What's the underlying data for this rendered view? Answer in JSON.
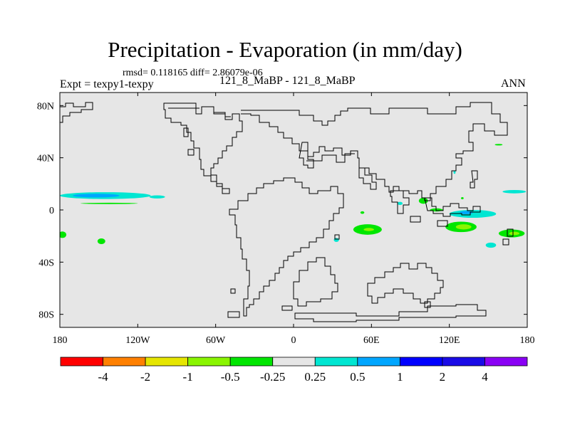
{
  "header": {
    "title": "Precipitation - Evaporation (in mm/day)",
    "stats": "rmsd= 0.118165 diff= 2.86079e-06",
    "case": "Expt = texpy1-texpy",
    "comparison": "121_8_MaBP - 121_8_MaBP",
    "season": "ANN"
  },
  "map": {
    "background_color": "#e6e6e6",
    "coastline_color": "#000000",
    "lon_ticks": [
      "180",
      "120W",
      "60W",
      "0",
      "60E",
      "120E",
      "180"
    ],
    "lat_ticks": [
      "80N",
      "40N",
      "0",
      "40S",
      "80S"
    ],
    "lat_tick_values": [
      80,
      40,
      0,
      -40,
      -80
    ],
    "lon_tick_values": [
      -180,
      -120,
      -60,
      0,
      60,
      120,
      180
    ],
    "lat_range": [
      -90,
      90
    ],
    "lon_range": [
      -180,
      180
    ]
  },
  "anomalies": [
    {
      "name": "tropical-pacific-positive",
      "lon": -145,
      "lat": 11,
      "dlon": 35,
      "dlat": 2.6,
      "color": "#00e6d2"
    },
    {
      "name": "tropical-pacific-positive-core",
      "lon": -152,
      "lat": 11,
      "dlon": 18,
      "dlat": 1.4,
      "color": "#00a6ff"
    },
    {
      "name": "central-pacific-positive",
      "lon": -105,
      "lat": 10,
      "dlon": 6,
      "dlat": 1.2,
      "color": "#00e6d2"
    },
    {
      "name": "east-pacific-thin-negative",
      "lon": -142,
      "lat": 5,
      "dlon": 22,
      "dlat": 0.5,
      "color": "#00e600"
    },
    {
      "name": "south-pacific-west-negative",
      "lon": -178,
      "lat": -19,
      "dlon": 3,
      "dlat": 2.5,
      "color": "#00e600"
    },
    {
      "name": "south-pacific-negative",
      "lon": -148,
      "lat": -24,
      "dlon": 3,
      "dlat": 2.2,
      "color": "#00e600"
    },
    {
      "name": "south-atlantic-negative",
      "lon": 57,
      "lat": -15,
      "dlon": 11,
      "dlat": 4,
      "color": "#00e600"
    },
    {
      "name": "south-atlantic-negative-core",
      "lon": 58,
      "lat": -15,
      "dlon": 4,
      "dlat": 1.2,
      "color": "#8af500"
    },
    {
      "name": "atlantic-small-negative",
      "lon": 53,
      "lat": -2,
      "dlon": 1.5,
      "dlat": 1,
      "color": "#00e600"
    },
    {
      "name": "congo-positive",
      "lon": 33,
      "lat": -23,
      "dlon": 2,
      "dlat": 1.5,
      "color": "#00e6d2"
    },
    {
      "name": "equatorial-positive-a",
      "lon": 82,
      "lat": 5,
      "dlon": 2,
      "dlat": 1.2,
      "color": "#00e6d2"
    },
    {
      "name": "equatorial-negative-bay",
      "lon": 100,
      "lat": 7,
      "dlon": 3.5,
      "dlat": 2.3,
      "color": "#00e600"
    },
    {
      "name": "indian-ocean-positive",
      "lon": 138,
      "lat": -3,
      "dlon": 18,
      "dlat": 3,
      "color": "#00e6d2"
    },
    {
      "name": "indian-ocean-positive-core",
      "lon": 133,
      "lat": -2,
      "dlon": 5,
      "dlat": 1.2,
      "color": "#00a6ff"
    },
    {
      "name": "indian-ocean-small-negative",
      "lon": 110,
      "lat": 0,
      "dlon": 5,
      "dlat": 1.2,
      "color": "#00e600"
    },
    {
      "name": "indian-ocean-negative",
      "lon": 129,
      "lat": -13,
      "dlon": 12,
      "dlat": 4,
      "color": "#00e600"
    },
    {
      "name": "indian-ocean-negative-core",
      "lon": 131,
      "lat": -13,
      "dlon": 6,
      "dlat": 2,
      "color": "#8af500"
    },
    {
      "name": "east-indian-negative",
      "lon": 168,
      "lat": -18,
      "dlon": 10,
      "dlat": 3,
      "color": "#00e600"
    },
    {
      "name": "east-indian-negative-core",
      "lon": 170,
      "lat": -18,
      "dlon": 4,
      "dlat": 1.3,
      "color": "#8af500"
    },
    {
      "name": "sea-positive",
      "lon": 152,
      "lat": -27,
      "dlon": 4,
      "dlat": 2,
      "color": "#00e6d2"
    },
    {
      "name": "pacific-warm-pool-positive",
      "lon": 170,
      "lat": 14,
      "dlon": 9,
      "dlat": 1.3,
      "color": "#00e6d2"
    },
    {
      "name": "north-pacific-negative",
      "lon": 158,
      "lat": 50,
      "dlon": 3,
      "dlat": 0.6,
      "color": "#00e600"
    },
    {
      "name": "north-atlantic-positive",
      "lon": 124,
      "lat": 29,
      "dlon": 0.8,
      "dlat": 1.3,
      "color": "#00e6d2"
    },
    {
      "name": "ne-small-negative",
      "lon": 130,
      "lat": 9,
      "dlon": 1,
      "dlat": 0.8,
      "color": "#00e600"
    }
  ],
  "colorbar": {
    "colors": [
      "#ff0000",
      "#ff8000",
      "#e6e600",
      "#8af500",
      "#00e600",
      "#e6e6e6",
      "#00e6d2",
      "#00a6ff",
      "#0000ff",
      "#1a0be6",
      "#8a00f5"
    ],
    "labels": [
      "-4",
      "-2",
      "-1",
      "-0.5",
      "-0.25",
      "0.25",
      "0.5",
      "1",
      "2",
      "4"
    ]
  }
}
